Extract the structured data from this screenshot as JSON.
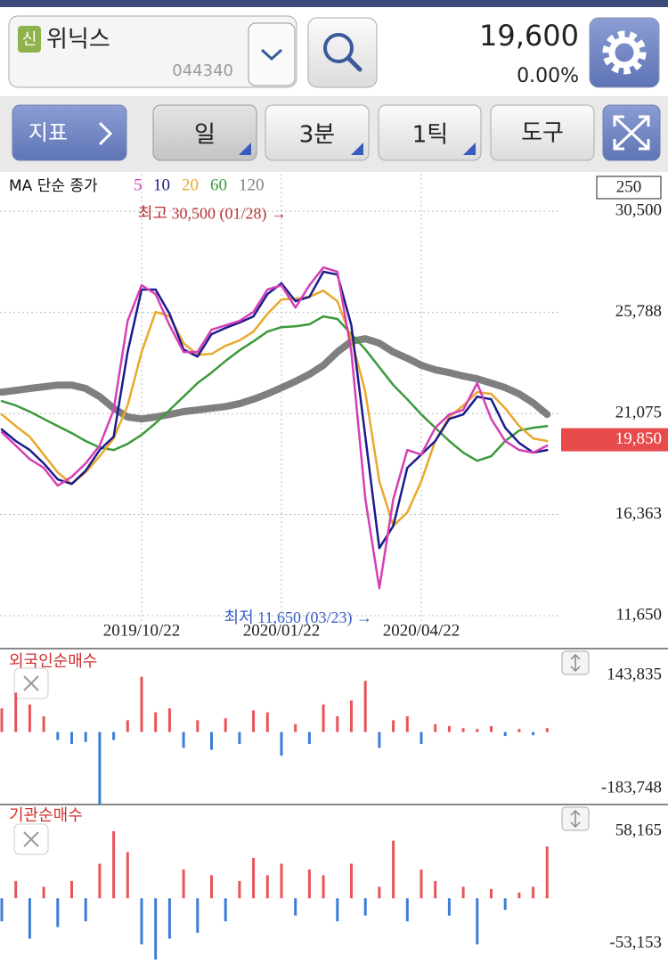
{
  "header": {
    "badge": "신",
    "name": "위닉스",
    "code": "044340",
    "price": "19,600",
    "change": "0.00%"
  },
  "toolbar": {
    "indicator": "지표",
    "period": "일",
    "minute": "3분",
    "tick": "1틱",
    "tools": "도구"
  },
  "chart_data": [
    {
      "type": "line",
      "legend_title": "MA 단순 종가",
      "period_box": 250,
      "categories": [
        null,
        null,
        null,
        null,
        null,
        null,
        null,
        null,
        null,
        null,
        "2019/10/22",
        null,
        null,
        null,
        null,
        null,
        null,
        null,
        null,
        null,
        "2020/01/22",
        null,
        null,
        null,
        null,
        null,
        null,
        null,
        null,
        null,
        "2020/04/22",
        null,
        null,
        null,
        null,
        null,
        null,
        null,
        null,
        null
      ],
      "series": [
        {
          "name": "120",
          "color": "#7f7f7f",
          "values": [
            22070,
            22150,
            22240,
            22320,
            22400,
            22400,
            22240,
            21860,
            21320,
            20910,
            20820,
            20910,
            21030,
            21160,
            21240,
            21320,
            21400,
            21530,
            21740,
            21990,
            22280,
            22570,
            22900,
            23320,
            23940,
            24440,
            24560,
            24350,
            23940,
            23650,
            23320,
            23110,
            22980,
            22820,
            22690,
            22490,
            22280,
            21990,
            21570,
            21030
          ]
        },
        {
          "name": "60",
          "color": "#3c9a3c",
          "values": [
            21650,
            21450,
            21160,
            20820,
            20490,
            20160,
            19790,
            19490,
            19370,
            19660,
            20080,
            20620,
            21240,
            21860,
            22490,
            22980,
            23520,
            24020,
            24440,
            24890,
            25100,
            25140,
            25230,
            25600,
            25480,
            24770,
            24060,
            23230,
            22400,
            21740,
            21030,
            20410,
            19790,
            19250,
            18870,
            19080,
            19790,
            20280,
            20410,
            20490
          ]
        },
        {
          "name": "20",
          "color": "#e8a92c",
          "values": [
            21030,
            20490,
            19990,
            19160,
            18330,
            17790,
            18330,
            19080,
            19910,
            21450,
            23940,
            25810,
            25600,
            24350,
            23810,
            23850,
            24230,
            24480,
            24890,
            25720,
            26390,
            26430,
            26510,
            26800,
            26310,
            24560,
            22070,
            17920,
            15840,
            16460,
            17920,
            19790,
            20910,
            21450,
            22070,
            21990,
            21320,
            20490,
            19910,
            19790
          ]
        },
        {
          "name": "10",
          "color": "#1c1c8c",
          "values": [
            20330,
            19790,
            19370,
            18750,
            18000,
            17790,
            18410,
            19370,
            19990,
            23940,
            26850,
            26850,
            25720,
            24060,
            23730,
            24770,
            25060,
            25310,
            25600,
            26640,
            27140,
            26310,
            26510,
            27680,
            27550,
            25180,
            19990,
            14800,
            15840,
            18540,
            19160,
            19790,
            20820,
            21030,
            21860,
            21740,
            20410,
            19700,
            19250,
            19370
          ]
        },
        {
          "name": "5",
          "color": "#d63fb6",
          "values": [
            20200,
            19580,
            18950,
            18540,
            17710,
            18120,
            18750,
            19580,
            21240,
            25390,
            27050,
            26640,
            25180,
            23940,
            23940,
            24980,
            25180,
            25390,
            25810,
            26850,
            27050,
            26010,
            27050,
            27880,
            27680,
            23940,
            17090,
            12930,
            17090,
            19370,
            19160,
            20410,
            21030,
            21240,
            22490,
            20820,
            19790,
            19370,
            19250,
            19580
          ]
        }
      ],
      "ylim": [
        10240,
        32250
      ],
      "yticks": [
        {
          "value": 30500,
          "label": "30,500"
        },
        {
          "value": 25788,
          "label": "25,788"
        },
        {
          "value": 21075,
          "label": "21,075"
        },
        {
          "value": 16363,
          "label": "16,363"
        },
        {
          "value": 11650,
          "label": "11,650"
        }
      ],
      "grid": true,
      "last_price": {
        "value": 19850,
        "label": "19,850",
        "color": "#e84b4b"
      },
      "annotations": [
        {
          "text": "최고 30,500 (01/28) →",
          "value": 30500,
          "color": "#b83232"
        },
        {
          "text": "최저 11,650 (03/23) →",
          "value": 11650,
          "color": "#3a5ec8"
        }
      ]
    },
    {
      "type": "bar",
      "title": "외국인순매수",
      "up_color": "#e8545a",
      "down_color": "#3b7dd8",
      "values": [
        60000,
        100000,
        70000,
        40000,
        -20000,
        -30000,
        -25000,
        -183748,
        -20000,
        30000,
        140000,
        50000,
        60000,
        -40000,
        30000,
        -45000,
        35000,
        -30000,
        55000,
        50000,
        -60000,
        20000,
        -30000,
        70000,
        40000,
        80000,
        130000,
        -40000,
        30000,
        40000,
        -30000,
        20000,
        15000,
        10000,
        8000,
        15000,
        -10000,
        8000,
        -8000,
        10000
      ],
      "ylim": [
        -183748,
        143835
      ],
      "yticks": [
        {
          "value": 143835,
          "label": "143,835"
        },
        {
          "value": -183748,
          "label": "-183,748"
        }
      ]
    },
    {
      "type": "bar",
      "title": "기관순매수",
      "up_color": "#e8545a",
      "down_color": "#3b7dd8",
      "values": [
        -20000,
        15000,
        -35000,
        10000,
        -25000,
        15000,
        -20000,
        30000,
        58165,
        40000,
        -40000,
        -53153,
        -35000,
        25000,
        -30000,
        20000,
        -20000,
        15000,
        35000,
        20000,
        30000,
        -15000,
        25000,
        20000,
        -20000,
        30000,
        -15000,
        10000,
        50000,
        -20000,
        25000,
        15000,
        -15000,
        10000,
        -40000,
        8000,
        -10000,
        5000,
        10000,
        45000
      ],
      "ylim": [
        -53153,
        58165
      ],
      "yticks": [
        {
          "value": 58165,
          "label": "58,165"
        },
        {
          "value": -53153,
          "label": "-53,153"
        }
      ]
    }
  ]
}
